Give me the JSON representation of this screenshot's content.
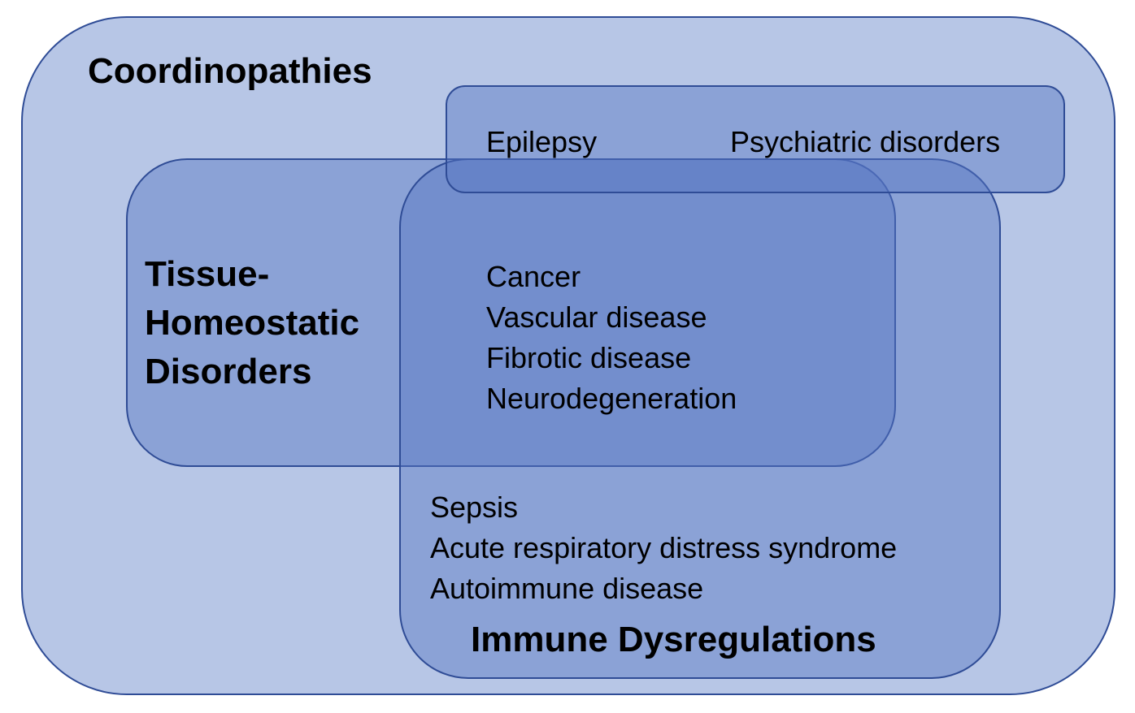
{
  "groups": {
    "coordinopathies": "Coordinopathies",
    "tissue_homeostatic": "Tissue-\nHomeostatic\nDisorders",
    "immune_dysregulations": "Immune Dysregulations"
  },
  "top_box": {
    "epilepsy": "Epilepsy",
    "psychiatric": "Psychiatric disorders"
  },
  "overlap_items": [
    "Cancer",
    "Vascular disease",
    "Fibrotic disease",
    "Neurodegeneration"
  ],
  "immune_items": [
    "Sepsis",
    "Acute respiratory distress syndrome",
    "Autoimmune disease"
  ],
  "colors": {
    "outer_fill": "#b7c6e6",
    "inner_fill": "#5676c4",
    "border": "#2f4c96"
  }
}
